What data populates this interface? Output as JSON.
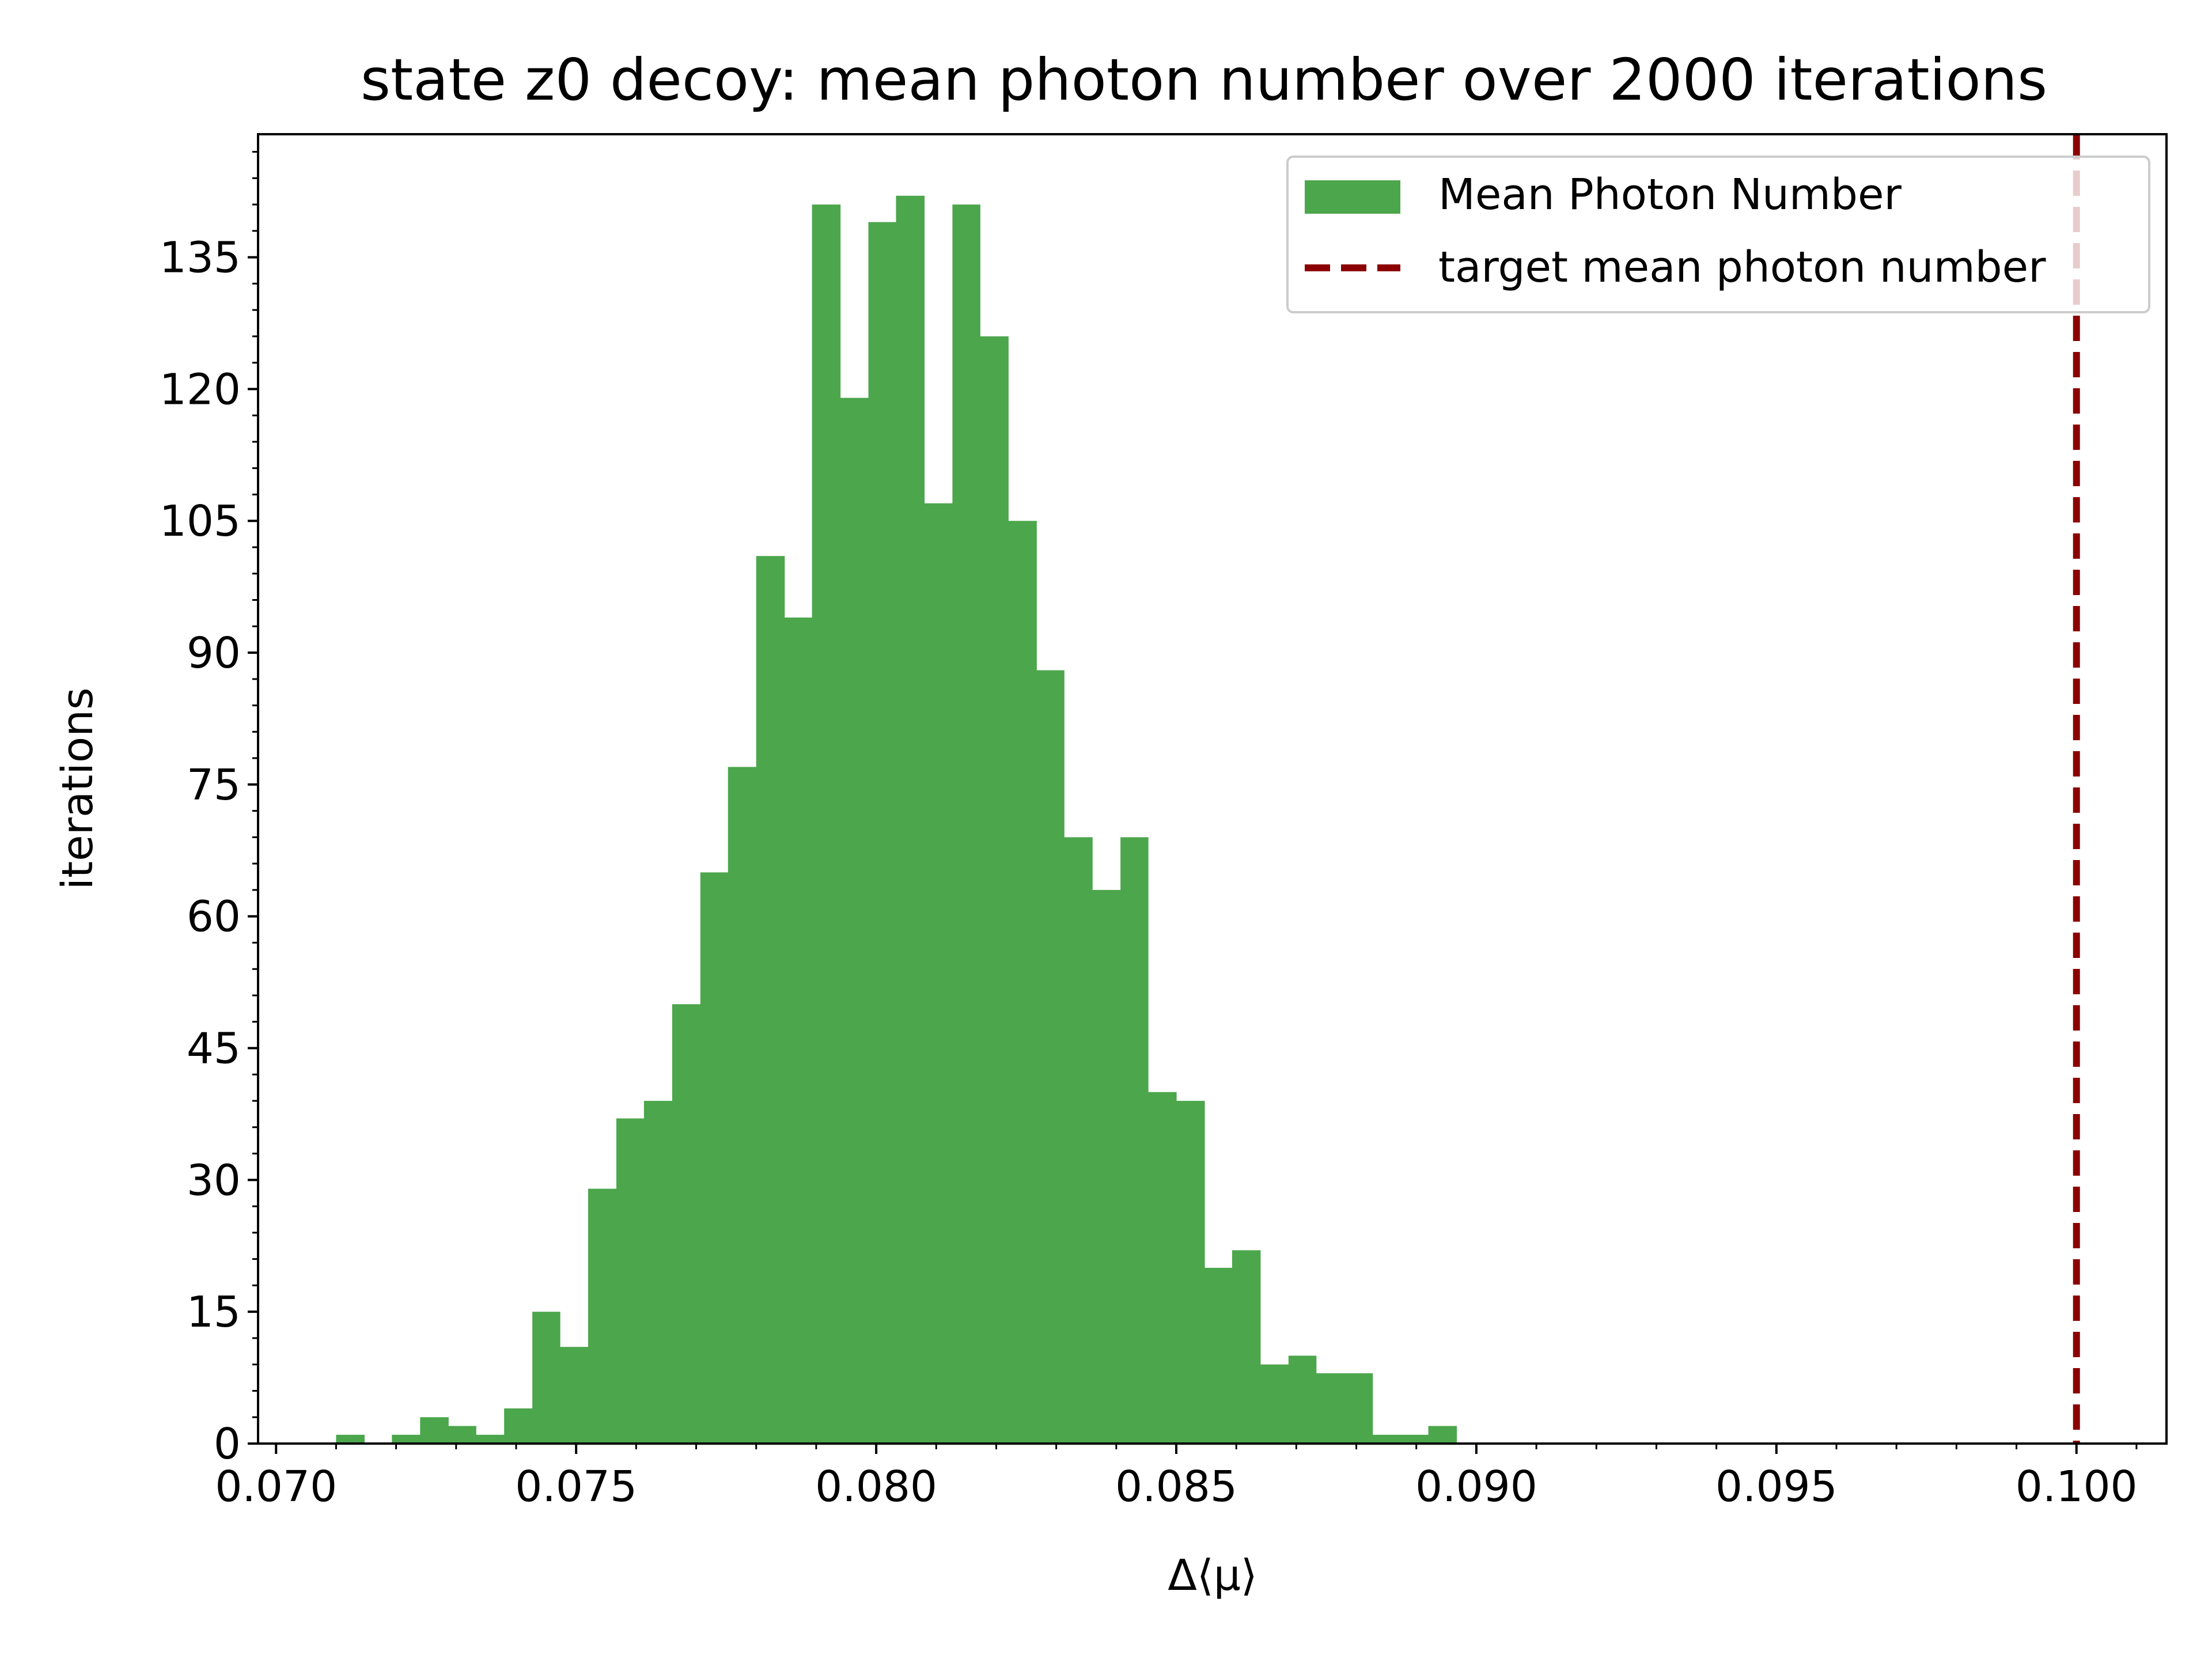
{
  "chart_data": {
    "type": "bar",
    "title": "state z0 decoy: mean photon number over 2000 iterations",
    "xlabel": "Δ⟨μ⟩",
    "ylabel": "iterations",
    "xlim": [
      0.0697,
      0.1015
    ],
    "ylim": [
      0,
      149
    ],
    "xticks": [
      0.07,
      0.075,
      0.08,
      0.085,
      0.09,
      0.095,
      0.1
    ],
    "xtick_labels": [
      "0.070",
      "0.075",
      "0.080",
      "0.085",
      "0.090",
      "0.095",
      "0.100"
    ],
    "yticks": [
      0,
      15,
      30,
      45,
      60,
      75,
      90,
      105,
      120,
      135
    ],
    "ytick_labels": [
      "0",
      "15",
      "30",
      "45",
      "60",
      "75",
      "90",
      "105",
      "120",
      "135"
    ],
    "grid": false,
    "legend_position": "top-right",
    "series": [
      {
        "name": "Mean Photon Number",
        "color": "#4ca64c",
        "bin_edges": [
          0.071,
          0.07147,
          0.07193,
          0.0724,
          0.07287,
          0.07333,
          0.0738,
          0.07427,
          0.07473,
          0.0752,
          0.07567,
          0.07613,
          0.0766,
          0.07707,
          0.07753,
          0.078,
          0.07847,
          0.07893,
          0.0794,
          0.07987,
          0.08033,
          0.0808,
          0.08127,
          0.08173,
          0.0822,
          0.08267,
          0.08313,
          0.0836,
          0.08407,
          0.08453,
          0.085,
          0.08547,
          0.08593,
          0.0864,
          0.08687,
          0.08733,
          0.0878,
          0.08827,
          0.08873,
          0.0892,
          0.08967
        ],
        "values": [
          1,
          0,
          1,
          3,
          2,
          1,
          4,
          15,
          11,
          29,
          37,
          39,
          50,
          65,
          77,
          101,
          94,
          141,
          119,
          139,
          142,
          107,
          141,
          126,
          105,
          88,
          69,
          63,
          69,
          40,
          39,
          20,
          22,
          9,
          10,
          8,
          8,
          1,
          1,
          2
        ]
      },
      {
        "name": "target mean photon number",
        "type": "vline",
        "x": 0.1,
        "color": "#8b0000",
        "linestyle": "dashed"
      }
    ]
  }
}
